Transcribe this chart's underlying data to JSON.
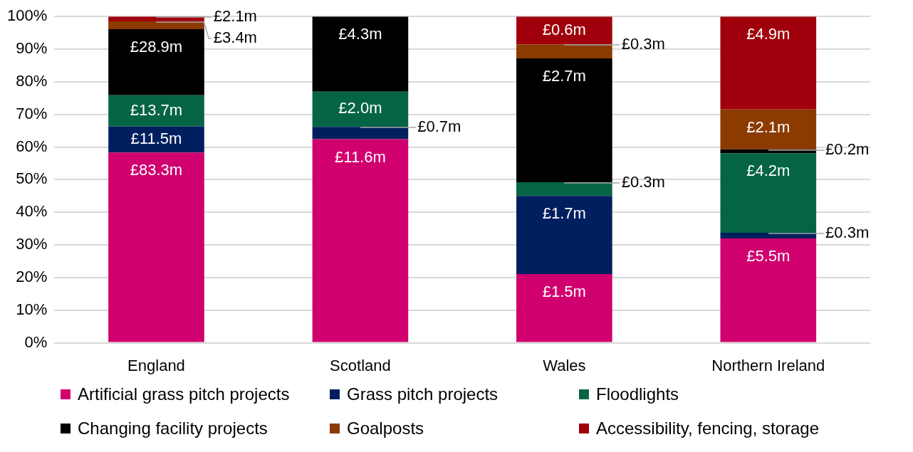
{
  "chart_data": {
    "type": "bar",
    "stacked": true,
    "categories": [
      "England",
      "Scotland",
      "Wales",
      "Northern Ireland"
    ],
    "series": [
      {
        "name": "Artificial grass pitch projects",
        "color": "#d0006f",
        "values": [
          58.3,
          62.4,
          21.1,
          32.0
        ]
      },
      {
        "name": "Grass pitch projects",
        "color": "#001f5f",
        "values": [
          8.0,
          3.8,
          23.9,
          1.7
        ]
      },
      {
        "name": "Floodlights",
        "color": "#066446",
        "values": [
          9.6,
          10.8,
          4.2,
          24.4
        ]
      },
      {
        "name": "Changing facility projects",
        "color": "#000000",
        "values": [
          20.2,
          23.0,
          38.0,
          1.2
        ]
      },
      {
        "name": "Goalposts",
        "color": "#8b3a00",
        "values": [
          2.4,
          0,
          4.3,
          12.2
        ]
      },
      {
        "name": "Accessibility, fencing, storage",
        "color": "#a0000c",
        "values": [
          1.5,
          0,
          8.5,
          28.5
        ]
      }
    ],
    "annotations": [
      {
        "text": "£83.3m",
        "x": "England",
        "y": 58.3
      },
      {
        "text": "£11.5m",
        "x": "England",
        "y": 66.3
      },
      {
        "text": "£13.7m",
        "x": "England",
        "y": 75.9
      },
      {
        "text": "£28.9m",
        "x": "England",
        "y": 96.1
      },
      {
        "text": "£3.4m",
        "x": "England",
        "y": 98.5
      },
      {
        "text": "£2.1m",
        "x": "England",
        "y": 100.0
      },
      {
        "text": "£11.6m",
        "x": "Scotland",
        "y": 62.4
      },
      {
        "text": "£0.7m",
        "x": "Scotland",
        "y": 66.2
      },
      {
        "text": "£2.0m",
        "x": "Scotland",
        "y": 77.0
      },
      {
        "text": "£4.3m",
        "x": "Scotland",
        "y": 100.0
      },
      {
        "text": "£1.5m",
        "x": "Wales",
        "y": 21.1
      },
      {
        "text": "£1.7m",
        "x": "Wales",
        "y": 45.0
      },
      {
        "text": "£0.3m",
        "x": "Wales",
        "y": 49.2
      },
      {
        "text": "£2.7m",
        "x": "Wales",
        "y": 87.2
      },
      {
        "text": "£0.3m",
        "x": "Wales",
        "y": 91.5
      },
      {
        "text": "£0.6m",
        "x": "Wales",
        "y": 100.0
      },
      {
        "text": "£5.5m",
        "x": "Northern Ireland",
        "y": 32.0
      },
      {
        "text": "£0.3m",
        "x": "Northern Ireland",
        "y": 33.7
      },
      {
        "text": "£4.2m",
        "x": "Northern Ireland",
        "y": 58.1
      },
      {
        "text": "£0.2m",
        "x": "Northern Ireland",
        "y": 59.3
      },
      {
        "text": "£2.1m",
        "x": "Northern Ireland",
        "y": 71.5
      },
      {
        "text": "£4.9m",
        "x": "Northern Ireland",
        "y": 100.0
      }
    ],
    "ylim": [
      0,
      100
    ],
    "yticks": [
      {
        "value": 0,
        "label": "0%"
      },
      {
        "value": 10,
        "label": "10%"
      },
      {
        "value": 20,
        "label": "20%"
      },
      {
        "value": 30,
        "label": "30%"
      },
      {
        "value": 40,
        "label": "40%"
      },
      {
        "value": 50,
        "label": "50%"
      },
      {
        "value": 60,
        "label": "60%"
      },
      {
        "value": 70,
        "label": "70%"
      },
      {
        "value": 80,
        "label": "80%"
      },
      {
        "value": 90,
        "label": "90%"
      },
      {
        "value": 100,
        "label": "100%"
      }
    ],
    "grid": "y",
    "legend": "bottom"
  }
}
